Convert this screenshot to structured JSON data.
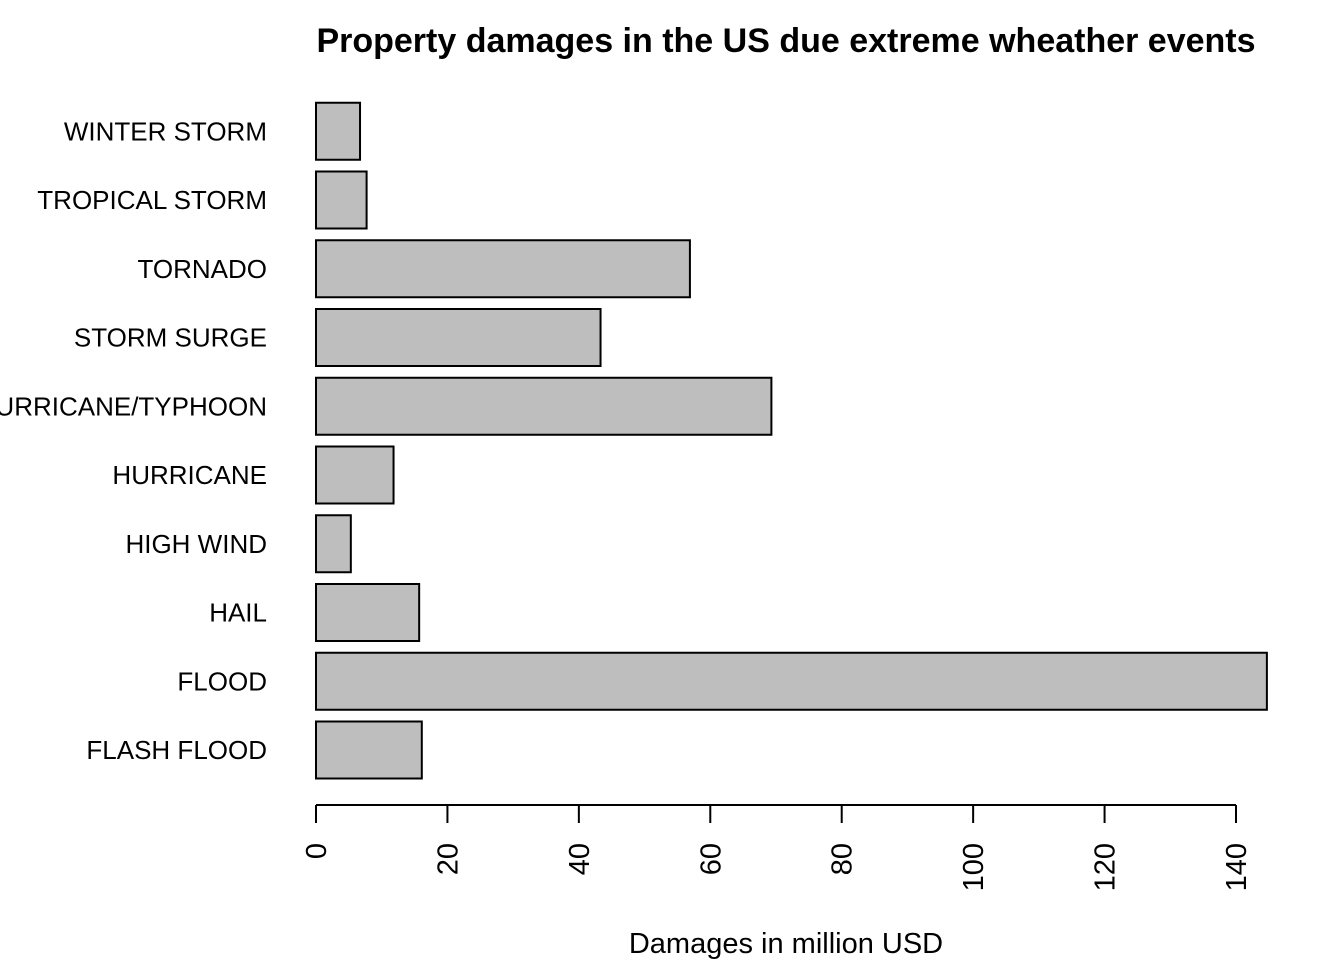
{
  "chart_data": {
    "type": "bar",
    "orientation": "horizontal",
    "title": "Property damages in the US due extreme wheather events",
    "xlabel": "Damages in million USD",
    "ylabel": "",
    "categories": [
      "FLASH FLOOD",
      "FLOOD",
      "HAIL",
      "HIGH WIND",
      "HURRICANE",
      "HURRICANE/TYPHOON",
      "STORM SURGE",
      "TORNADO",
      "TROPICAL STORM",
      "WINTER STORM"
    ],
    "values": [
      16.1,
      144.7,
      15.7,
      5.3,
      11.8,
      69.3,
      43.3,
      56.9,
      7.7,
      6.7
    ],
    "xlim": [
      0,
      140
    ],
    "xticks": [
      0,
      20,
      40,
      60,
      80,
      100,
      120,
      140
    ],
    "bar_color": "#bebebe",
    "grid": false,
    "legend": "none"
  }
}
